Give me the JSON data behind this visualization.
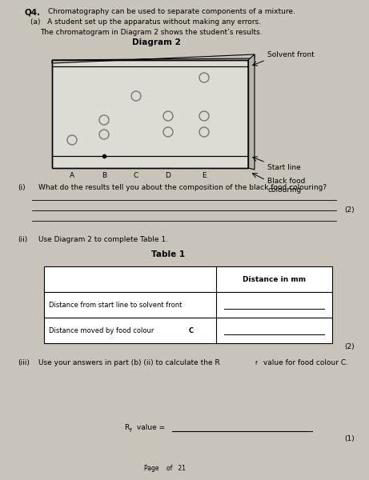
{
  "page_bg": "#c9c4ba",
  "title": "Q4.",
  "subtitle1": "Chromatography can be used to separate components of a mixture.",
  "subtitle2": "(a)   A student set up the apparatus without making any errors.",
  "subtitle3": "The chromatogram in Diagram 2 shows the student’s results.",
  "diagram_title": "Diagram 2",
  "solvent_front_label": "Solvent front",
  "start_line_label": "Start line",
  "black_food_label": "Black food\ncolouring",
  "lane_labels": [
    "A",
    "B",
    "C",
    "D",
    "E"
  ],
  "q_i_label": "(i)",
  "q_i_text": "What do the results tell you about the composition of the black food colouring?",
  "q_ii_label": "(ii)",
  "q_ii_text": "Use Diagram 2 to complete Table 1.",
  "table_title": "Table 1",
  "table_col_header": "Distance in mm",
  "table_row1": "Distance from start line to solvent front",
  "table_row2": "Distance moved by food colour C",
  "q_iii_label": "(iii)",
  "q_iii_text": "Use your answers in part (b) (ii) to calculate the Rf value for food colour C.",
  "marks_2a": "(2)",
  "marks_2b": "(2)",
  "marks_1": "(1)",
  "rf_label": "Rf value = "
}
